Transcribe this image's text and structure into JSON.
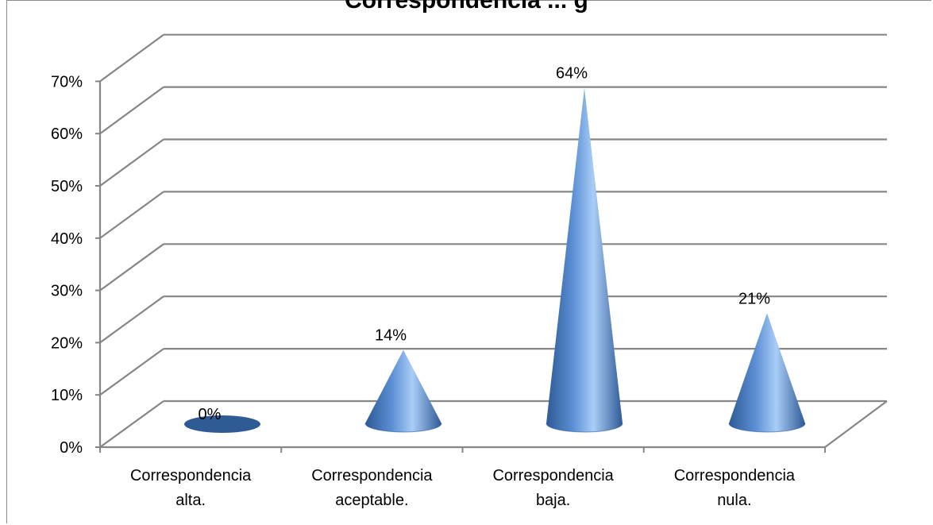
{
  "chart_data": {
    "type": "bar",
    "bar_shape": "cone",
    "title": "Correspondencia ... g",
    "categories": [
      [
        "Correspondencia",
        "alta."
      ],
      [
        "Correspondencia",
        "aceptable."
      ],
      [
        "Correspondencia",
        "baja."
      ],
      [
        "Correspondencia",
        "nula."
      ]
    ],
    "values": [
      0,
      14,
      64,
      21
    ],
    "data_labels": [
      "0%",
      "14%",
      "64%",
      "21%"
    ],
    "y_ticks": [
      "0%",
      "10%",
      "20%",
      "30%",
      "40%",
      "50%",
      "60%",
      "70%"
    ],
    "ylim": [
      0,
      70
    ],
    "grid": true,
    "legend": "none",
    "colors": {
      "cone_dark": "#2e5a96",
      "cone_mid": "#5b8fd4",
      "cone_light": "#a9cdf7",
      "grid": "#868686"
    }
  }
}
